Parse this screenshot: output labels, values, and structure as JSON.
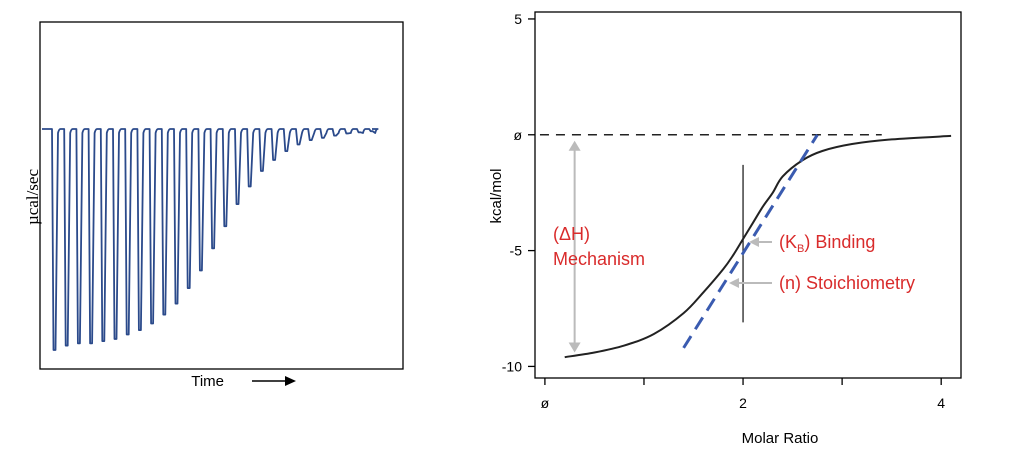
{
  "chart_data": [
    {
      "type": "line",
      "panel": "raw-thermogram",
      "xlabel": "Time",
      "ylabel": "µcal/sec",
      "series": [
        {
          "peak_depths": [
            1.0,
            0.98,
            0.97,
            0.97,
            0.96,
            0.95,
            0.93,
            0.91,
            0.88,
            0.84,
            0.79,
            0.72,
            0.64,
            0.54,
            0.44,
            0.34,
            0.26,
            0.19,
            0.14,
            0.1,
            0.07,
            0.05,
            0.04,
            0.03,
            0.02,
            0.015,
            0.01
          ]
        }
      ],
      "grid": false,
      "colors": {
        "trace": "#2b4a8b",
        "frame": "#000000"
      }
    },
    {
      "type": "line",
      "panel": "binding-isotherm",
      "xlabel": "Molar Ratio",
      "ylabel": "kcal/mol",
      "x_ticks": [
        "ø",
        "",
        "2",
        "",
        "4"
      ],
      "x_tick_values": [
        0,
        1,
        2,
        3,
        4
      ],
      "y_ticks": [
        "5",
        "ø",
        "-5",
        "-10"
      ],
      "y_tick_values": [
        5,
        0,
        -5,
        -10
      ],
      "xlim": [
        -0.1,
        4.2
      ],
      "ylim": [
        -10.5,
        5.3
      ],
      "grid": false,
      "series": [
        {
          "x": [
            0.2,
            0.5,
            0.8,
            1.1,
            1.4,
            1.6,
            1.8,
            1.9,
            2.0,
            2.1,
            2.2,
            2.3,
            2.4,
            2.6,
            2.8,
            3.1,
            3.5,
            4.1
          ],
          "y": [
            -9.6,
            -9.4,
            -9.1,
            -8.6,
            -7.7,
            -6.8,
            -5.8,
            -5.2,
            -4.5,
            -3.8,
            -3.1,
            -2.5,
            -1.8,
            -1.1,
            -0.7,
            -0.4,
            -0.2,
            -0.05
          ]
        }
      ],
      "tangent_line": {
        "x": [
          1.4,
          2.75
        ],
        "y": [
          -9.2,
          0.0
        ]
      },
      "zero_line_y": 0,
      "inflection_x": 2.0,
      "annotations": {
        "enthalpy_line1": "(ΔH)",
        "enthalpy_line2": "Mechanism",
        "binding_prefix": "(K",
        "binding_sub": "B",
        "binding_suffix": ") Binding",
        "stoich": "(n) Stoichiometry"
      },
      "colors": {
        "curve": "#222222",
        "tangent": "#3a5bb0",
        "annotation": "#d92b2b",
        "arrow": "#bbbbbb",
        "frame": "#000000"
      }
    }
  ]
}
